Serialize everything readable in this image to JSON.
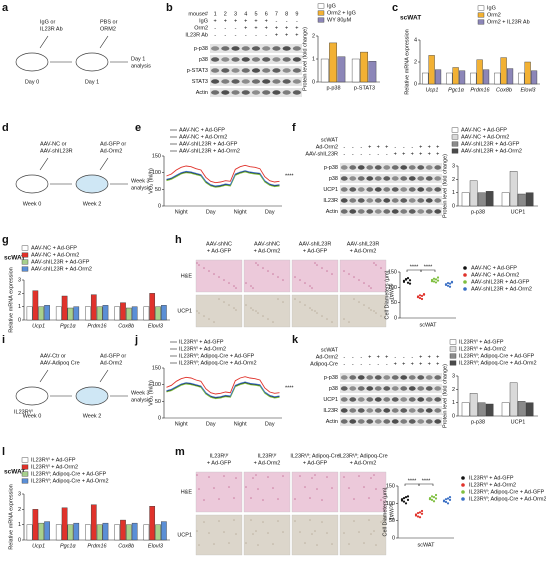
{
  "panel_labels": [
    "a",
    "b",
    "c",
    "d",
    "e",
    "f",
    "g",
    "h",
    "i",
    "j",
    "k",
    "l",
    "m"
  ],
  "schematics": [
    {
      "first": [
        "IgG or",
        "IL23R Ab"
      ],
      "time1": "Day 0",
      "second": [
        "PBS or",
        "ORM2"
      ],
      "time2": "Day 1",
      "end": [
        "Day 1",
        "analysis"
      ]
    },
    {
      "first": [
        "AAV-NC or",
        "AAV-shIL23R"
      ],
      "time1": "Week 0",
      "second": [
        "Ad-GFP or",
        "Ad-Orm2"
      ],
      "time2": "Week 2",
      "end": [
        "Week 3",
        "analysis"
      ]
    },
    {
      "first": [
        "AAV-Ctr or",
        "AAV-Adipoq Cre"
      ],
      "genotype": "IL23Rᶠ/ᶠ",
      "time1": "Week 0",
      "second": [
        "Ad-GFP or",
        "Ad-Orm2"
      ],
      "time2": "Week 2",
      "end": [
        "Week 3",
        "analysis"
      ]
    }
  ],
  "blots": [
    {
      "header": "mouse#",
      "columns": [
        1,
        2,
        3,
        4,
        5,
        6,
        7,
        8,
        9
      ],
      "rows": [
        {
          "label": "IgG",
          "signs": [
            "+",
            "+",
            "+",
            "+",
            "+",
            "+",
            "-",
            "-",
            "-"
          ]
        },
        {
          "label": "Orm2",
          "signs": [
            "-",
            "-",
            "-",
            "+",
            "+",
            "+",
            "+",
            "+",
            "+"
          ]
        },
        {
          "label": "IL23R Ab",
          "signs": [
            "-",
            "-",
            "-",
            "-",
            "-",
            "-",
            "+",
            "+",
            "+"
          ]
        }
      ],
      "bands": [
        "p-p38",
        "p38",
        "p-STAT3",
        "STAT3",
        "Actin"
      ]
    },
    {
      "title": "scWAT",
      "rows": [
        {
          "label": "Ad-Orm2",
          "signs": [
            "-",
            "-",
            "-",
            "+",
            "+",
            "+",
            "-",
            "-",
            "-",
            "+",
            "+",
            "+"
          ]
        },
        {
          "label": "AAV-shIL23R",
          "signs": [
            "-",
            "-",
            "-",
            "-",
            "-",
            "-",
            "+",
            "+",
            "+",
            "+",
            "+",
            "+"
          ]
        }
      ],
      "bands": [
        "p-p38",
        "p38",
        "UCP1",
        "IL23R",
        "Actin"
      ]
    },
    {
      "title": "scWAT",
      "rows": [
        {
          "label": "Ad-Orm2",
          "signs": [
            "-",
            "-",
            "-",
            "+",
            "+",
            "+",
            "-",
            "-",
            "-",
            "+",
            "+",
            "+"
          ]
        },
        {
          "label": "Adipoq-Cre",
          "signs": [
            "-",
            "-",
            "-",
            "-",
            "-",
            "-",
            "+",
            "+",
            "+",
            "+",
            "+",
            "+"
          ]
        }
      ],
      "bands": [
        "p-p38",
        "p38",
        "UCP1",
        "IL23R",
        "Actin"
      ]
    }
  ],
  "images": [
    {
      "columns": [
        [
          "AAV-shNC",
          "+ Ad-GFP"
        ],
        [
          "AAV-shNC",
          "+ Ad-Orm2"
        ],
        [
          "AAV-shIL23R",
          "+ Ad-GFP"
        ],
        [
          "AAV-shIL23R",
          "+ Ad-Orm2"
        ]
      ],
      "rows": [
        "H&E",
        "UCP1"
      ],
      "side": "scWAT"
    },
    {
      "columns": [
        [
          "IL23Rᶠ/ᶠ",
          "+ Ad-GFP"
        ],
        [
          "IL23Rᶠ/ᶠ",
          "+ Ad-Orm2"
        ],
        [
          "IL23Rᶠ/ᶠ; Adipoq-Cre",
          "+ Ad-GFP"
        ],
        [
          "IL23Rᶠ/ᶠ; Adipoq-Cre",
          "+ Ad-Orm2"
        ]
      ],
      "rows": [
        "H&E",
        "UCP1"
      ],
      "side": "scWAT"
    }
  ],
  "chart_data": [
    {
      "type": "bar",
      "ylabel": "Protein level (fold change)",
      "categories": [
        "p-p38",
        "p-STAT3"
      ],
      "ylim": [
        0,
        2
      ],
      "yticks": [
        0,
        1,
        2
      ],
      "series": [
        {
          "name": "IgG",
          "color": "#ffffff",
          "values": [
            1.0,
            1.0
          ]
        },
        {
          "name": "Orm2 + IgG",
          "color": "#f2b134",
          "values": [
            1.7,
            1.3
          ]
        },
        {
          "name": "WY 80μM",
          "color": "#8c86b8",
          "values": [
            1.1,
            0.9
          ]
        }
      ]
    },
    {
      "type": "bar",
      "title": "scWAT",
      "ylabel": "Relative mRNA expression",
      "italic_categories": true,
      "categories": [
        "Ucp1",
        "Pgc1α",
        "Prdm16",
        "Cox8b",
        "Elovl3"
      ],
      "ylim": [
        0,
        4
      ],
      "yticks": [
        0,
        2,
        4
      ],
      "series": [
        {
          "name": "IgG",
          "color": "#ffffff",
          "values": [
            1,
            1,
            1,
            1,
            1
          ]
        },
        {
          "name": "Orm2",
          "color": "#f2b134",
          "values": [
            2.6,
            1.5,
            2.2,
            2.4,
            2.0
          ]
        },
        {
          "name": "Orm2 + IL23R Ab",
          "color": "#8c86b8",
          "values": [
            1.3,
            1.2,
            1.3,
            1.4,
            1.2
          ]
        }
      ]
    },
    {
      "type": "line",
      "ylabel": "VO₂ (ml/h)",
      "annotation": "****",
      "ylim": [
        0,
        150
      ],
      "yticks": [
        0,
        50,
        100,
        150
      ],
      "categories": [
        null,
        null,
        null,
        "Night",
        null,
        null,
        null,
        null,
        null,
        "Day",
        null,
        null,
        null,
        null,
        null,
        "Night",
        null,
        null,
        null,
        null,
        null,
        "Day",
        null,
        null
      ],
      "series": [
        {
          "name": "AAV-NC + Ad-GFP",
          "color": "#111111",
          "values": [
            78,
            82,
            90,
            98,
            102,
            100,
            96,
            92,
            72,
            62,
            58,
            60,
            64,
            62,
            94,
            100,
            104,
            100,
            98,
            96,
            74,
            64,
            60,
            62
          ]
        },
        {
          "name": "AAV-NC + Ad-Orm2",
          "color": "#e0322b",
          "values": [
            90,
            96,
            108,
            116,
            120,
            118,
            112,
            108,
            86,
            74,
            70,
            72,
            76,
            74,
            110,
            118,
            122,
            118,
            116,
            112,
            88,
            76,
            72,
            74
          ]
        },
        {
          "name": "AAV-shIL23R + Ad-GFP",
          "color": "#7fbf3f",
          "values": [
            76,
            80,
            88,
            96,
            100,
            98,
            94,
            90,
            70,
            60,
            56,
            58,
            62,
            60,
            92,
            98,
            102,
            98,
            96,
            94,
            72,
            62,
            58,
            60
          ]
        },
        {
          "name": "AAV-shIL23R + Ad-Orm2",
          "color": "#3a6fc4",
          "values": [
            80,
            84,
            92,
            100,
            104,
            102,
            98,
            94,
            74,
            64,
            60,
            62,
            66,
            64,
            96,
            102,
            106,
            102,
            100,
            98,
            76,
            66,
            62,
            64
          ]
        }
      ]
    },
    {
      "type": "bar",
      "ylabel": "Protein level (fold change)",
      "categories": [
        "p-p38",
        "UCP1"
      ],
      "ylim": [
        0,
        3
      ],
      "yticks": [
        0,
        1,
        2,
        3
      ],
      "series": [
        {
          "name": "AAV-NC + Ad-GFP",
          "color": "#ffffff",
          "values": [
            1.0,
            1.0
          ]
        },
        {
          "name": "AAV-NC + Ad-Orm2",
          "color": "#d9d9d9",
          "values": [
            1.9,
            2.6
          ]
        },
        {
          "name": "AAV-shIL23R + Ad-GFP",
          "color": "#8a8a8a",
          "values": [
            1.0,
            0.9
          ]
        },
        {
          "name": "AAV-shIL23R + Ad-Orm2",
          "color": "#4a4a4a",
          "values": [
            1.1,
            1.0
          ]
        }
      ]
    },
    {
      "type": "bar",
      "title": "scWAT",
      "ylabel": "Relative mRNA expression",
      "italic_categories": true,
      "categories": [
        "Ucp1",
        "Pgc1α",
        "Prdm16",
        "Cox8b",
        "Elovl3"
      ],
      "ylim": [
        0,
        3
      ],
      "yticks": [
        0,
        1,
        2,
        3
      ],
      "series": [
        {
          "name": "AAV-NC + Ad-GFP",
          "color": "#ffffff",
          "values": [
            1,
            1,
            1,
            1,
            1
          ]
        },
        {
          "name": "AAV-NC + Ad-Orm2",
          "color": "#e0322b",
          "values": [
            2.2,
            1.8,
            1.9,
            1.3,
            2.0
          ]
        },
        {
          "name": "AAV-shIL23R + Ad-GFP",
          "color": "#a8d08d",
          "values": [
            1.0,
            0.9,
            1.0,
            0.9,
            1.0
          ]
        },
        {
          "name": "AAV-shIL23R + Ad-Orm2",
          "color": "#5b8fd6",
          "values": [
            1.1,
            1.0,
            1.1,
            1.0,
            1.1
          ]
        }
      ]
    },
    {
      "type": "strip",
      "xlabel": "scWAT",
      "ylabel": "Cell Diameters (μm)",
      "ylim": [
        0,
        150
      ],
      "yticks": [
        0,
        50,
        100,
        150
      ],
      "significance": [
        "****",
        "****"
      ],
      "series": [
        {
          "name": "AAV-NC + Ad-GFP",
          "color": "#111111",
          "values": [
            118,
            125,
            130,
            112,
            121,
            127,
            115,
            123
          ]
        },
        {
          "name": "AAV-NC + Ad-Orm2",
          "color": "#e0322b",
          "values": [
            68,
            74,
            62,
            78,
            70,
            65,
            72,
            76
          ]
        },
        {
          "name": "AAV-shIL23R + Ad-GFP",
          "color": "#7fbf3f",
          "values": [
            120,
            128,
            116,
            132,
            124,
            119,
            126,
            122
          ]
        },
        {
          "name": "AAV-shIL23R + Ad-Orm2",
          "color": "#3a6fc4",
          "values": [
            108,
            114,
            102,
            118,
            110,
            105,
            112,
            116
          ]
        }
      ]
    },
    {
      "type": "line",
      "ylabel": "VO₂ (ml/h)",
      "annotation": "****",
      "ylim": [
        0,
        150
      ],
      "yticks": [
        0,
        50,
        100,
        150
      ],
      "categories": [
        null,
        null,
        null,
        "Night",
        null,
        null,
        null,
        null,
        null,
        "Day",
        null,
        null,
        null,
        null,
        null,
        "Night",
        null,
        null,
        null,
        null,
        null,
        "Day",
        null,
        null
      ],
      "series": [
        {
          "name": "IL23Rᶠ/ᶠ + Ad-GFP",
          "color": "#111111",
          "values": [
            80,
            84,
            92,
            100,
            104,
            102,
            98,
            94,
            74,
            64,
            60,
            62,
            66,
            64,
            96,
            102,
            106,
            102,
            100,
            98,
            76,
            66,
            62,
            64
          ]
        },
        {
          "name": "IL23Rᶠ/ᶠ + Ad-Orm2",
          "color": "#e0322b",
          "values": [
            92,
            98,
            110,
            118,
            122,
            120,
            114,
            110,
            88,
            76,
            72,
            74,
            78,
            76,
            112,
            120,
            124,
            120,
            118,
            114,
            90,
            78,
            74,
            76
          ]
        },
        {
          "name": "IL23Rᶠ/ᶠ; Adipoq-Cre + Ad-GFP",
          "color": "#7fbf3f",
          "values": [
            78,
            82,
            90,
            98,
            102,
            100,
            96,
            92,
            72,
            62,
            58,
            60,
            64,
            62,
            94,
            100,
            104,
            100,
            98,
            96,
            74,
            64,
            60,
            62
          ]
        },
        {
          "name": "IL23Rᶠ/ᶠ; Adipoq-Cre + Ad-Orm2",
          "color": "#3a6fc4",
          "values": [
            82,
            86,
            94,
            102,
            106,
            104,
            100,
            96,
            76,
            66,
            62,
            64,
            68,
            66,
            98,
            104,
            108,
            104,
            102,
            100,
            78,
            68,
            64,
            66
          ]
        }
      ]
    },
    {
      "type": "bar",
      "ylabel": "Protein level (fold change)",
      "categories": [
        "p-p38",
        "UCP1"
      ],
      "ylim": [
        0,
        3
      ],
      "yticks": [
        0,
        1,
        2,
        3
      ],
      "series": [
        {
          "name": "IL23Rᶠ/ᶠ + Ad-GFP",
          "color": "#ffffff",
          "values": [
            1.0,
            1.0
          ]
        },
        {
          "name": "IL23Rᶠ/ᶠ + Ad-Orm2",
          "color": "#d9d9d9",
          "values": [
            1.7,
            2.5
          ]
        },
        {
          "name": "IL23Rᶠ/ᶠ; Adipoq-Cre + Ad-GFP",
          "color": "#8a8a8a",
          "values": [
            1.0,
            1.1
          ]
        },
        {
          "name": "IL23Rᶠ/ᶠ; Adipoq-Cre + Ad-Orm2",
          "color": "#4a4a4a",
          "values": [
            0.9,
            1.0
          ]
        }
      ]
    },
    {
      "type": "bar",
      "title": "scWAT",
      "ylabel": "Relative mRNA expression",
      "italic_categories": true,
      "categories": [
        "Ucp1",
        "Pgc1α",
        "Prdm16",
        "Cox8b",
        "Elovl3"
      ],
      "ylim": [
        0,
        3
      ],
      "yticks": [
        0,
        1,
        2,
        3
      ],
      "series": [
        {
          "name": "IL23Rᶠ/ᶠ + Ad-GFP",
          "color": "#ffffff",
          "values": [
            1,
            1,
            1,
            1,
            1
          ]
        },
        {
          "name": "IL23Rᶠ/ᶠ + Ad-Orm2",
          "color": "#e0322b",
          "values": [
            2.0,
            2.1,
            2.3,
            1.3,
            2.2
          ]
        },
        {
          "name": "IL23Rᶠ/ᶠ; Adipoq-Cre + Ad-GFP",
          "color": "#a8d08d",
          "values": [
            1.1,
            1.0,
            1.0,
            1.0,
            1.0
          ]
        },
        {
          "name": "IL23Rᶠ/ᶠ; Adipoq-Cre + Ad-Orm2",
          "color": "#5b8fd6",
          "values": [
            1.2,
            1.1,
            1.1,
            1.1,
            1.2
          ]
        }
      ]
    },
    {
      "type": "strip",
      "xlabel": "scWAT",
      "ylabel": "Cell Diameters (μm)",
      "ylim": [
        0,
        150
      ],
      "yticks": [
        0,
        50,
        100,
        150
      ],
      "significance": [
        "****",
        "****"
      ],
      "series": [
        {
          "name": "IL23Rᶠ/ᶠ + Ad-GFP",
          "color": "#111111",
          "values": [
            108,
            115,
            100,
            120,
            112,
            105,
            118,
            110
          ]
        },
        {
          "name": "IL23Rᶠ/ᶠ + Ad-Orm2",
          "color": "#e0322b",
          "values": [
            65,
            72,
            60,
            78,
            68,
            62,
            74,
            70
          ]
        },
        {
          "name": "IL23Rᶠ/ᶠ; Adipoq-Cre + Ad-GFP",
          "color": "#7fbf3f",
          "values": [
            112,
            120,
            106,
            124,
            115,
            110,
            118,
            114
          ]
        },
        {
          "name": "IL23Rᶠ/ᶠ; Adipoq-Cre + Ad-Orm2",
          "color": "#3a6fc4",
          "values": [
            106,
            112,
            100,
            118,
            108,
            104,
            114,
            110
          ]
        }
      ]
    }
  ]
}
